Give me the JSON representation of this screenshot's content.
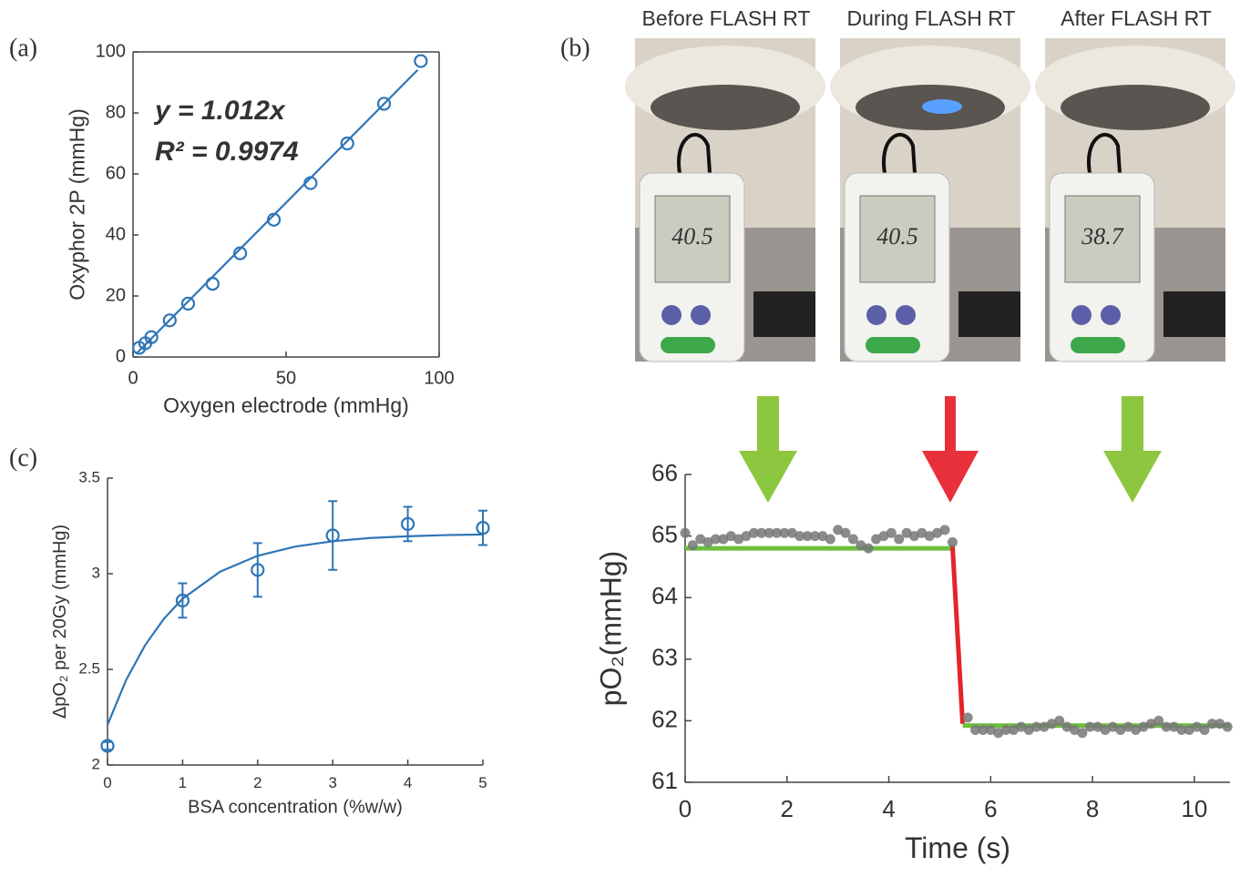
{
  "chart_data": [
    {
      "type": "scatter",
      "panel_label": "(a)",
      "xlabel": "Oxygen electrode (mmHg)",
      "ylabel": "Oxyphor 2P (mmHg)",
      "xlim": [
        0,
        100
      ],
      "ylim": [
        0,
        100
      ],
      "xticks": [
        0,
        50,
        100
      ],
      "yticks": [
        0,
        20,
        40,
        60,
        80,
        100
      ],
      "box": true,
      "annotations": [
        "y = 1.012x",
        "R² = 0.9974"
      ],
      "series": [
        {
          "mode": "markers",
          "color": "#2e75b6",
          "x": [
            2,
            4,
            6,
            12,
            18,
            26,
            35,
            46,
            58,
            70,
            82,
            94
          ],
          "values": [
            3,
            4.5,
            6.5,
            12,
            17.5,
            24,
            34,
            45,
            57,
            70,
            83,
            97
          ]
        },
        {
          "mode": "line",
          "color": "#2e75b6",
          "x": [
            1,
            93
          ],
          "values": [
            1.0,
            94.1
          ]
        }
      ]
    },
    {
      "type": "scatter",
      "panel_label": "(b)",
      "xlabel": "Time (s)",
      "ylabel": "pO₂(mmHg)",
      "xlim": [
        0,
        10.7
      ],
      "ylim": [
        61,
        66
      ],
      "xticks": [
        0,
        2,
        4,
        6,
        8,
        10
      ],
      "yticks": [
        61,
        62,
        63,
        64,
        65,
        66
      ],
      "box": false,
      "photos": [
        {
          "title": "Before FLASH RT",
          "reading": "40.5"
        },
        {
          "title": "During FLASH RT",
          "reading": "40.5"
        },
        {
          "title": "After FLASH RT",
          "reading": "38.7"
        }
      ],
      "series": [
        {
          "mode": "line",
          "color": "#6cbf3c",
          "x": [
            0,
            5.25
          ],
          "values": [
            64.8,
            64.8
          ]
        },
        {
          "mode": "line",
          "color": "#e3242b",
          "x": [
            5.25,
            5.45
          ],
          "values": [
            64.85,
            61.95
          ]
        },
        {
          "mode": "line",
          "color": "#6cbf3c",
          "x": [
            5.45,
            10.7
          ],
          "values": [
            61.92,
            61.92
          ]
        },
        {
          "mode": "dots",
          "color": "#777777",
          "x": [
            0,
            0.15,
            0.3,
            0.45,
            0.6,
            0.75,
            0.9,
            1.05,
            1.2,
            1.35,
            1.5,
            1.65,
            1.8,
            1.95,
            2.1,
            2.25,
            2.4,
            2.55,
            2.7,
            2.85,
            3.0,
            3.15,
            3.3,
            3.45,
            3.6,
            3.75,
            3.9,
            4.05,
            4.2,
            4.35,
            4.5,
            4.65,
            4.8,
            4.95,
            5.1,
            5.25,
            5.55,
            5.7,
            5.85,
            6.0,
            6.15,
            6.3,
            6.45,
            6.6,
            6.75,
            6.9,
            7.05,
            7.2,
            7.35,
            7.5,
            7.65,
            7.8,
            7.95,
            8.1,
            8.25,
            8.4,
            8.55,
            8.7,
            8.85,
            9.0,
            9.15,
            9.3,
            9.45,
            9.6,
            9.75,
            9.9,
            10.05,
            10.2,
            10.35,
            10.5,
            10.65
          ],
          "values": [
            65.05,
            64.85,
            64.95,
            64.9,
            64.95,
            64.95,
            65.0,
            64.95,
            65.0,
            65.05,
            65.05,
            65.05,
            65.05,
            65.05,
            65.05,
            65.0,
            65.0,
            65.0,
            65.0,
            64.95,
            65.1,
            65.05,
            64.95,
            64.85,
            64.8,
            64.95,
            65.0,
            65.05,
            64.95,
            65.05,
            65.0,
            65.05,
            65.0,
            65.05,
            65.1,
            64.9,
            62.05,
            61.85,
            61.85,
            61.85,
            61.8,
            61.85,
            61.85,
            61.9,
            61.85,
            61.9,
            61.9,
            61.95,
            62.0,
            61.9,
            61.85,
            61.8,
            61.9,
            61.9,
            61.85,
            61.9,
            61.85,
            61.9,
            61.85,
            61.9,
            61.95,
            62.0,
            61.9,
            61.9,
            61.85,
            61.85,
            61.9,
            61.85,
            61.95,
            61.95,
            61.9
          ]
        }
      ]
    },
    {
      "type": "errorbar",
      "panel_label": "(c)",
      "xlabel": "BSA concentration (%w/w)",
      "ylabel": "ΔpO₂ per 20Gy (mmHg)",
      "xlim": [
        0,
        5
      ],
      "ylim": [
        2,
        3.5
      ],
      "xticks": [
        0,
        1,
        2,
        3,
        4,
        5
      ],
      "yticks": [
        2,
        2.5,
        3,
        3.5
      ],
      "box": false,
      "series": [
        {
          "mode": "line",
          "color": "#2e75b6",
          "x": [
            0,
            0.25,
            0.5,
            0.75,
            1,
            1.5,
            2,
            2.5,
            3,
            3.5,
            4,
            4.5,
            5
          ],
          "values": [
            2.21,
            2.446,
            2.626,
            2.764,
            2.869,
            3.011,
            3.094,
            3.142,
            3.17,
            3.187,
            3.196,
            3.202,
            3.205
          ]
        },
        {
          "mode": "markers",
          "color": "#2e75b6",
          "x": [
            0,
            1,
            2,
            3,
            4,
            5
          ],
          "values": [
            2.1,
            2.86,
            3.02,
            3.2,
            3.26,
            3.24
          ],
          "errors": [
            0.02,
            0.09,
            0.14,
            0.18,
            0.09,
            0.09
          ]
        }
      ]
    }
  ]
}
